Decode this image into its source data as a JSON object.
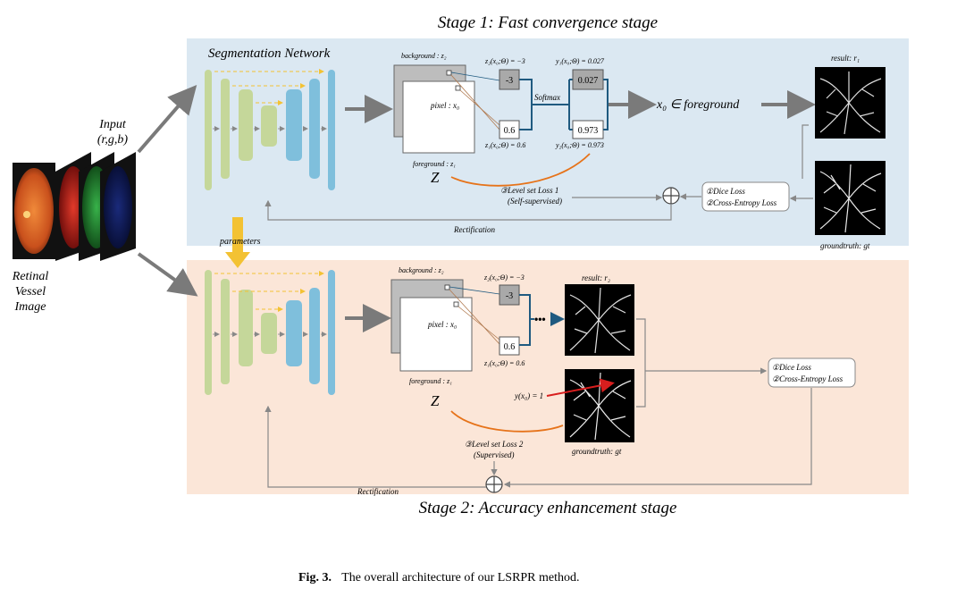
{
  "stage1": {
    "title": "Stage 1: Fast convergence stage",
    "network_label": "Segmentation Network",
    "background_label": "background : z₂",
    "pixel_label": "pixel : x₀",
    "foreground_label": "foreground : z₁",
    "z_symbol": "Z",
    "z2_expr": "z₂(x₀;Θ) = −3",
    "z1_expr": "z₁(x₀;Θ) = 0.6",
    "val_bg": "-3",
    "val_fg": "0.6",
    "softmax_label": "Softmax",
    "y1_expr": "y₁(x₀;Θ) = 0.027",
    "y2_expr": "y₂(x₀;Θ) = 0.973",
    "prob_bg": "0.027",
    "prob_fg": "0.973",
    "decision": "x₀ ∈ foreground",
    "result_label": "result:  r₁",
    "groundtruth_label": "groundtruth:  gt",
    "loss1": "①Dice Loss",
    "loss2": "②Cross-Entropy Loss",
    "levelset_line1": "③Level set Loss 1",
    "levelset_line2": "(Self-supervised)",
    "rectification": "Rectification"
  },
  "stage2": {
    "title": "Stage 2: Accuracy enhancement stage",
    "background_label": "background : z₂",
    "pixel_label": "pixel : x₀",
    "foreground_label": "foreground : z₁",
    "z_symbol": "Z",
    "z2_expr": "z₂(x₀;Θ) = −3",
    "z1_expr": "z₁(x₀;Θ) = 0.6",
    "val_bg": "-3",
    "val_fg": "0.6",
    "ellipsis": "•••",
    "result_label": "result:  r₂",
    "groundtruth_label": "groundtruth:  gt",
    "y_expr": "y(x₀) = 1",
    "loss1": "①Dice Loss",
    "loss2": "②Cross-Entropy Loss",
    "levelset_line1": "③Level set Loss 2",
    "levelset_line2": "(Supervised)",
    "rectification": "Rectification"
  },
  "input": {
    "label_line1": "Input",
    "label_line2": "(r,g,b)",
    "image_line1": "Retinal",
    "image_line2": "Vessel",
    "image_line3": "Image",
    "parameters_label": "parameters"
  },
  "caption": {
    "prefix": "Fig. 3.",
    "text": "The overall architecture of our LSRPR method."
  },
  "colors": {
    "stage1_bg": "#dbe8f2",
    "stage2_bg": "#fbe6d8",
    "encoder_green": "#c5d79a",
    "bottleneck_blue": "#7fbfdc",
    "orange_curve": "#e6731a",
    "arrow_yellow": "#f3c233",
    "arrow_red": "#d81e1e",
    "dark_blue_line": "#1f5a80"
  }
}
